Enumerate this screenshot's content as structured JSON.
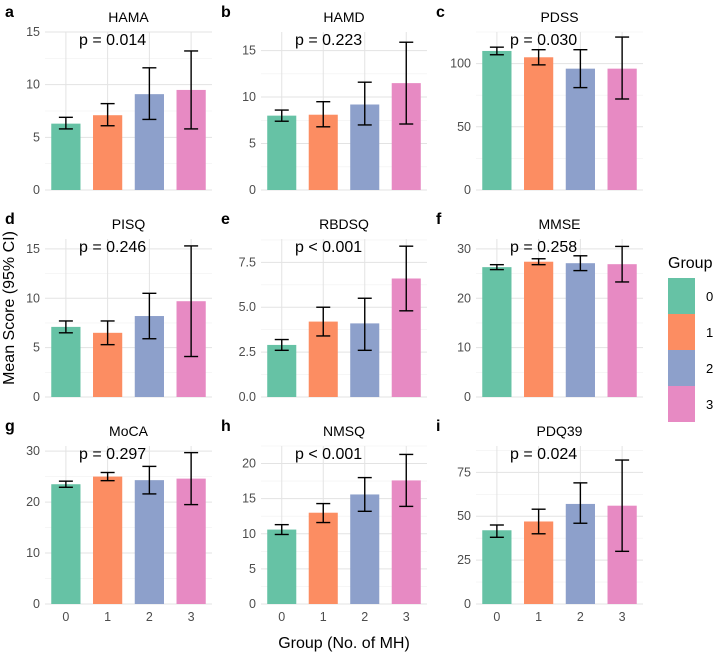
{
  "figure": {
    "xlabel": "Group (No. of MH)",
    "ylabel": "Mean Score (95% CI)",
    "legend": {
      "title": "Group",
      "placement": "right",
      "items": [
        "0",
        "1",
        "2",
        "3"
      ]
    },
    "colors": [
      "#66c2a5",
      "#fc8d62",
      "#8da0cb",
      "#e78ac3"
    ],
    "grid": true
  },
  "chart_data": [
    {
      "letter": "a",
      "title": "HAMA",
      "type": "bar",
      "categories": [
        "0",
        "1",
        "2",
        "3"
      ],
      "values": [
        6.3,
        7.1,
        9.1,
        9.5
      ],
      "ci_low": [
        5.8,
        6.1,
        6.7,
        5.8
      ],
      "ci_high": [
        6.9,
        8.2,
        11.6,
        13.2
      ],
      "ylim": [
        0,
        15
      ],
      "yticks": [
        0,
        5,
        10,
        15
      ],
      "yticklabels": [
        "0",
        "5",
        "10",
        "15"
      ],
      "annotation": "p = 0.014"
    },
    {
      "letter": "b",
      "title": "HAMD",
      "type": "bar",
      "categories": [
        "0",
        "1",
        "2",
        "3"
      ],
      "values": [
        8.0,
        8.1,
        9.2,
        11.5
      ],
      "ci_low": [
        7.4,
        6.8,
        7.0,
        7.1
      ],
      "ci_high": [
        8.6,
        9.5,
        11.6,
        15.9
      ],
      "ylim": [
        0,
        17
      ],
      "yticks": [
        0,
        5,
        10,
        15
      ],
      "yticklabels": [
        "0",
        "5",
        "10",
        "15"
      ],
      "annotation": "p = 0.223"
    },
    {
      "letter": "c",
      "title": "PDSS",
      "type": "bar",
      "categories": [
        "0",
        "1",
        "2",
        "3"
      ],
      "values": [
        110,
        105,
        96,
        96
      ],
      "ci_low": [
        107,
        99,
        81,
        72
      ],
      "ci_high": [
        113,
        111,
        111,
        121
      ],
      "ylim": [
        0,
        125
      ],
      "yticks": [
        0,
        50,
        100
      ],
      "yticklabels": [
        "0",
        "50",
        "100"
      ],
      "annotation": "p = 0.030"
    },
    {
      "letter": "d",
      "title": "PISQ",
      "type": "bar",
      "categories": [
        "0",
        "1",
        "2",
        "3"
      ],
      "values": [
        7.1,
        6.5,
        8.2,
        9.7
      ],
      "ci_low": [
        6.5,
        5.3,
        5.9,
        4.1
      ],
      "ci_high": [
        7.7,
        7.7,
        10.5,
        15.3
      ],
      "ylim": [
        0,
        16
      ],
      "yticks": [
        0,
        5,
        10,
        15
      ],
      "yticklabels": [
        "0",
        "5",
        "10",
        "15"
      ],
      "annotation": "p = 0.246"
    },
    {
      "letter": "e",
      "title": "RBDSQ",
      "type": "bar",
      "categories": [
        "0",
        "1",
        "2",
        "3"
      ],
      "values": [
        2.9,
        4.2,
        4.1,
        6.6
      ],
      "ci_low": [
        2.6,
        3.4,
        2.6,
        4.8
      ],
      "ci_high": [
        3.2,
        5.0,
        5.5,
        8.4
      ],
      "ylim": [
        0,
        8.8
      ],
      "yticks": [
        0,
        2.5,
        5.0,
        7.5
      ],
      "yticklabels": [
        "0.0",
        "2.5",
        "5.0",
        "7.5"
      ],
      "annotation": "p < 0.001"
    },
    {
      "letter": "f",
      "title": "MMSE",
      "type": "bar",
      "categories": [
        "0",
        "1",
        "2",
        "3"
      ],
      "values": [
        26.3,
        27.4,
        27.1,
        26.9
      ],
      "ci_low": [
        25.8,
        26.8,
        25.6,
        23.3
      ],
      "ci_high": [
        26.8,
        28.0,
        28.6,
        30.5
      ],
      "ylim": [
        0,
        32
      ],
      "yticks": [
        0,
        10,
        20,
        30
      ],
      "yticklabels": [
        "0",
        "10",
        "20",
        "30"
      ],
      "annotation": "p = 0.258"
    },
    {
      "letter": "g",
      "title": "MoCA",
      "type": "bar",
      "categories": [
        "0",
        "1",
        "2",
        "3"
      ],
      "values": [
        23.5,
        25.0,
        24.3,
        24.6
      ],
      "ci_low": [
        22.9,
        24.2,
        21.6,
        19.5
      ],
      "ci_high": [
        24.1,
        25.8,
        27.0,
        29.7
      ],
      "ylim": [
        0,
        31
      ],
      "yticks": [
        0,
        10,
        20,
        30
      ],
      "yticklabels": [
        "0",
        "10",
        "20",
        "30"
      ],
      "annotation": "p = 0.297"
    },
    {
      "letter": "h",
      "title": "NMSQ",
      "type": "bar",
      "categories": [
        "0",
        "1",
        "2",
        "3"
      ],
      "values": [
        10.6,
        13.0,
        15.6,
        17.6
      ],
      "ci_low": [
        9.9,
        11.6,
        13.2,
        13.9
      ],
      "ci_high": [
        11.3,
        14.3,
        18.0,
        21.3
      ],
      "ylim": [
        0,
        22.5
      ],
      "yticks": [
        0,
        5,
        10,
        15,
        20
      ],
      "yticklabels": [
        "0",
        "5",
        "10",
        "15",
        "20"
      ],
      "annotation": "p < 0.001"
    },
    {
      "letter": "i",
      "title": "PDQ39",
      "type": "bar",
      "categories": [
        "0",
        "1",
        "2",
        "3"
      ],
      "values": [
        42,
        47,
        57,
        56
      ],
      "ci_low": [
        38,
        40,
        46,
        30
      ],
      "ci_high": [
        45,
        54,
        69,
        82
      ],
      "ylim": [
        0,
        90
      ],
      "yticks": [
        0,
        25,
        50,
        75
      ],
      "yticklabels": [
        "0",
        "25",
        "50",
        "75"
      ],
      "annotation": "p = 0.024"
    }
  ]
}
